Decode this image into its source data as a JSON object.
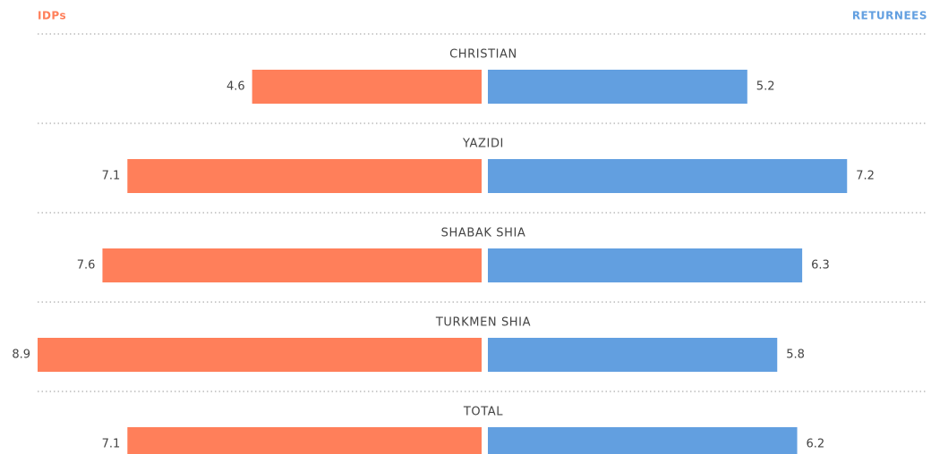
{
  "chart_data": {
    "type": "butterfly",
    "categories": [
      "CHRISTIAN",
      "YAZIDI",
      "SHABAK SHIA",
      "TURKMEN SHIA",
      "TOTAL"
    ],
    "series": [
      {
        "name": "IDPs",
        "color": "#ff7f5a",
        "values": [
          4.6,
          7.1,
          7.6,
          8.9,
          7.1
        ]
      },
      {
        "name": "RETURNEES",
        "color": "#629fe0",
        "values": [
          5.2,
          7.2,
          6.3,
          5.8,
          6.2
        ]
      }
    ]
  }
}
